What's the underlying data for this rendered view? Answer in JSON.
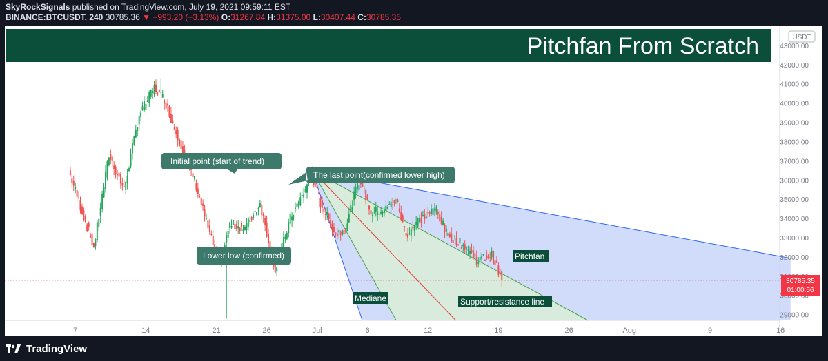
{
  "header": {
    "publisher": "SkyRockSignals",
    "published_text": "published on TradingView.com, July 19, 2021 09:59:11 EST",
    "symbol": "BINANCE:BTCUSDT, 240",
    "last_price": "30785.36",
    "change": "▼ −993.20 (−3.13%)",
    "open_label": "O:",
    "open": "31267.84",
    "high_label": "H:",
    "high": "31375.00",
    "low_label": "L:",
    "low": "30407.44",
    "close_label": "C:",
    "close": "30785.35"
  },
  "banner": {
    "title": "Pitchfan From Scratch",
    "color": "#0b4f3b"
  },
  "price_axis": {
    "currency": "USDT",
    "current_price": "30785.35",
    "countdown": "01:00:56",
    "current_color": "#f23645"
  },
  "annotations": {
    "initial_point": "Initial point (start of trend)",
    "last_point": "The last point(confirmed lower high)",
    "lower_low": "Lower low (confirmed)",
    "pitchfan": "Pitchfan",
    "mediane": "Mediane",
    "support_resistance": "Support/resistance line"
  },
  "footer": {
    "brand": "TradingView"
  },
  "colors": {
    "up": "#26a65b",
    "down": "#ef5350",
    "fan_blue": "#c5d3fa",
    "fan_green": "#d9ecd8",
    "label_bg": "#3e7a6c"
  },
  "chart_data": {
    "type": "candlestick",
    "title": "Pitchfan From Scratch",
    "ylim": [
      28700,
      44000
    ],
    "yticks": [
      29000,
      30000,
      31000,
      32000,
      33000,
      34000,
      35000,
      36000,
      37000,
      38000,
      39000,
      40000,
      41000,
      42000,
      43000
    ],
    "ytick_labels": [
      "29000.00",
      "30000.00",
      "31000.00",
      "32000.00",
      "33000.00",
      "34000.00",
      "35000.00",
      "36000.00",
      "37000.00",
      "38000.00",
      "39000.00",
      "40000.00",
      "41000.00",
      "42000.00",
      "43000.00"
    ],
    "xticks": [
      {
        "label": "7",
        "day": 7
      },
      {
        "label": "14",
        "day": 14
      },
      {
        "label": "21",
        "day": 21
      },
      {
        "label": "26",
        "day": 26
      },
      {
        "label": "Jul",
        "day": 31
      },
      {
        "label": "6",
        "day": 36
      },
      {
        "label": "12",
        "day": 42
      },
      {
        "label": "19",
        "day": 49
      },
      {
        "label": "26",
        "day": 56
      },
      {
        "label": "Aug",
        "day": 62
      },
      {
        "label": "9",
        "day": 70
      },
      {
        "label": "16",
        "day": 77
      }
    ],
    "x_unit": "days since May 31, 2021",
    "price_path": [
      {
        "day": 6.5,
        "price": 36500
      },
      {
        "day": 9,
        "price": 32500
      },
      {
        "day": 10.5,
        "price": 37300
      },
      {
        "day": 12,
        "price": 35500
      },
      {
        "day": 13.5,
        "price": 39400
      },
      {
        "day": 15,
        "price": 40800
      },
      {
        "day": 16,
        "price": 40200
      },
      {
        "day": 17,
        "price": 38700
      },
      {
        "day": 19,
        "price": 36000
      },
      {
        "day": 20.5,
        "price": 33200
      },
      {
        "day": 21.5,
        "price": 31600
      },
      {
        "day": 22.5,
        "price": 33700
      },
      {
        "day": 24,
        "price": 33500
      },
      {
        "day": 25.5,
        "price": 34800
      },
      {
        "day": 27,
        "price": 31300
      },
      {
        "day": 28.5,
        "price": 34000
      },
      {
        "day": 30,
        "price": 35500
      },
      {
        "day": 30.5,
        "price": 36500
      },
      {
        "day": 31.5,
        "price": 34800
      },
      {
        "day": 33,
        "price": 33200
      },
      {
        "day": 34,
        "price": 33500
      },
      {
        "day": 35,
        "price": 35500
      },
      {
        "day": 35.5,
        "price": 36000
      },
      {
        "day": 36.5,
        "price": 34300
      },
      {
        "day": 38,
        "price": 34500
      },
      {
        "day": 39,
        "price": 35000
      },
      {
        "day": 40,
        "price": 33100
      },
      {
        "day": 41,
        "price": 33800
      },
      {
        "day": 43,
        "price": 34500
      },
      {
        "day": 44,
        "price": 33200
      },
      {
        "day": 46,
        "price": 32500
      },
      {
        "day": 47,
        "price": 31800
      },
      {
        "day": 48.5,
        "price": 32100
      },
      {
        "day": 49.5,
        "price": 30785
      }
    ],
    "extremes": [
      {
        "day": 15.5,
        "price": 41300,
        "type": "wick_high"
      },
      {
        "day": 22,
        "price": 28800,
        "type": "wick_low"
      },
      {
        "day": 27,
        "price": 31000,
        "type": "wick_low"
      }
    ],
    "pitchfan": {
      "pivot": {
        "day": 30.5,
        "price": 36500
      },
      "lower_high": {
        "day": 35.7,
        "price": 36000
      },
      "lower_low": {
        "day": 32.8,
        "price": 32900
      },
      "end_day": 78
    },
    "current_price": 30785.35
  }
}
